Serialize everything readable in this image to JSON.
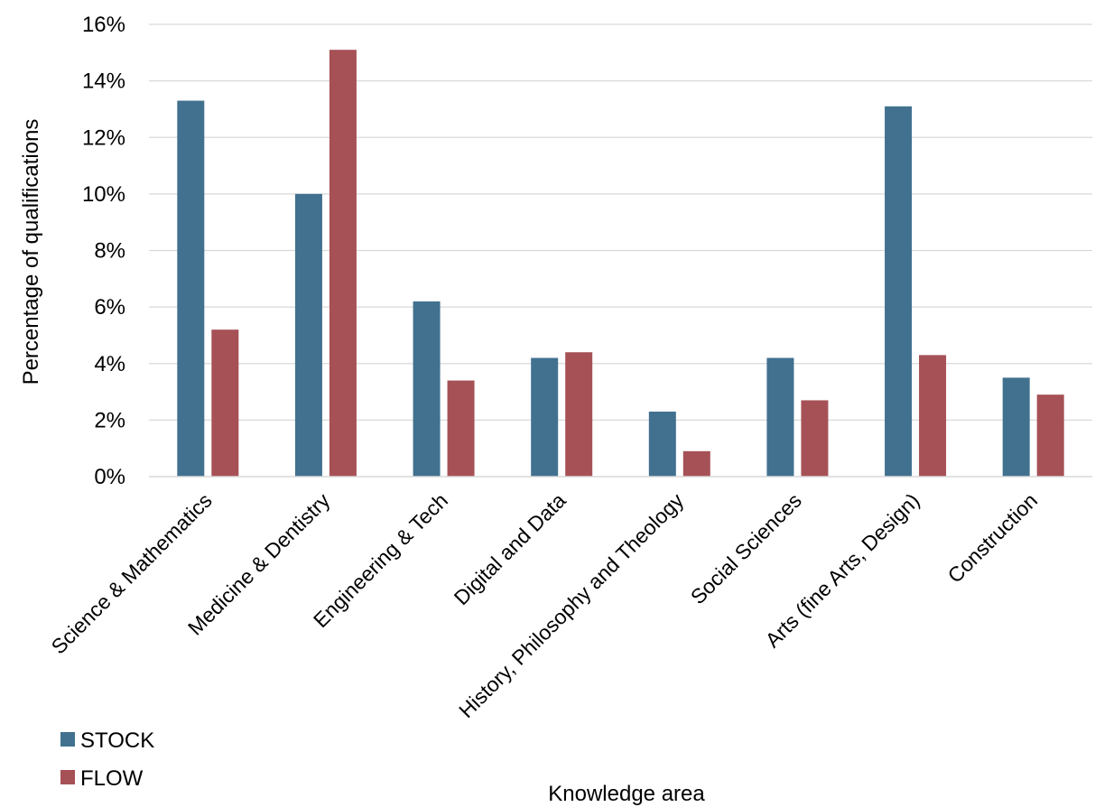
{
  "chart_data": {
    "type": "bar",
    "title": "",
    "xlabel": "Knowledge area",
    "ylabel": "Percentage of qualifications",
    "ylim": [
      0,
      16
    ],
    "y_unit": "%",
    "yticks": [
      0,
      2,
      4,
      6,
      8,
      10,
      12,
      14,
      16
    ],
    "grid": true,
    "legend_position": "bottom-left",
    "categories": [
      "Science & Mathematics",
      "Medicine & Dentistry",
      "Engineering & Tech",
      "Digital and Data",
      "History, Philosophy and Theology",
      "Social Sciences",
      "Arts (fine Arts, Design)",
      "Construction"
    ],
    "series": [
      {
        "name": "STOCK",
        "color": "#41718F",
        "values": [
          13.3,
          10.0,
          6.2,
          4.2,
          2.3,
          4.2,
          13.1,
          3.5
        ]
      },
      {
        "name": "FLOW",
        "color": "#A65156",
        "values": [
          5.2,
          15.1,
          3.4,
          4.4,
          0.9,
          2.7,
          4.3,
          2.9
        ]
      }
    ]
  }
}
